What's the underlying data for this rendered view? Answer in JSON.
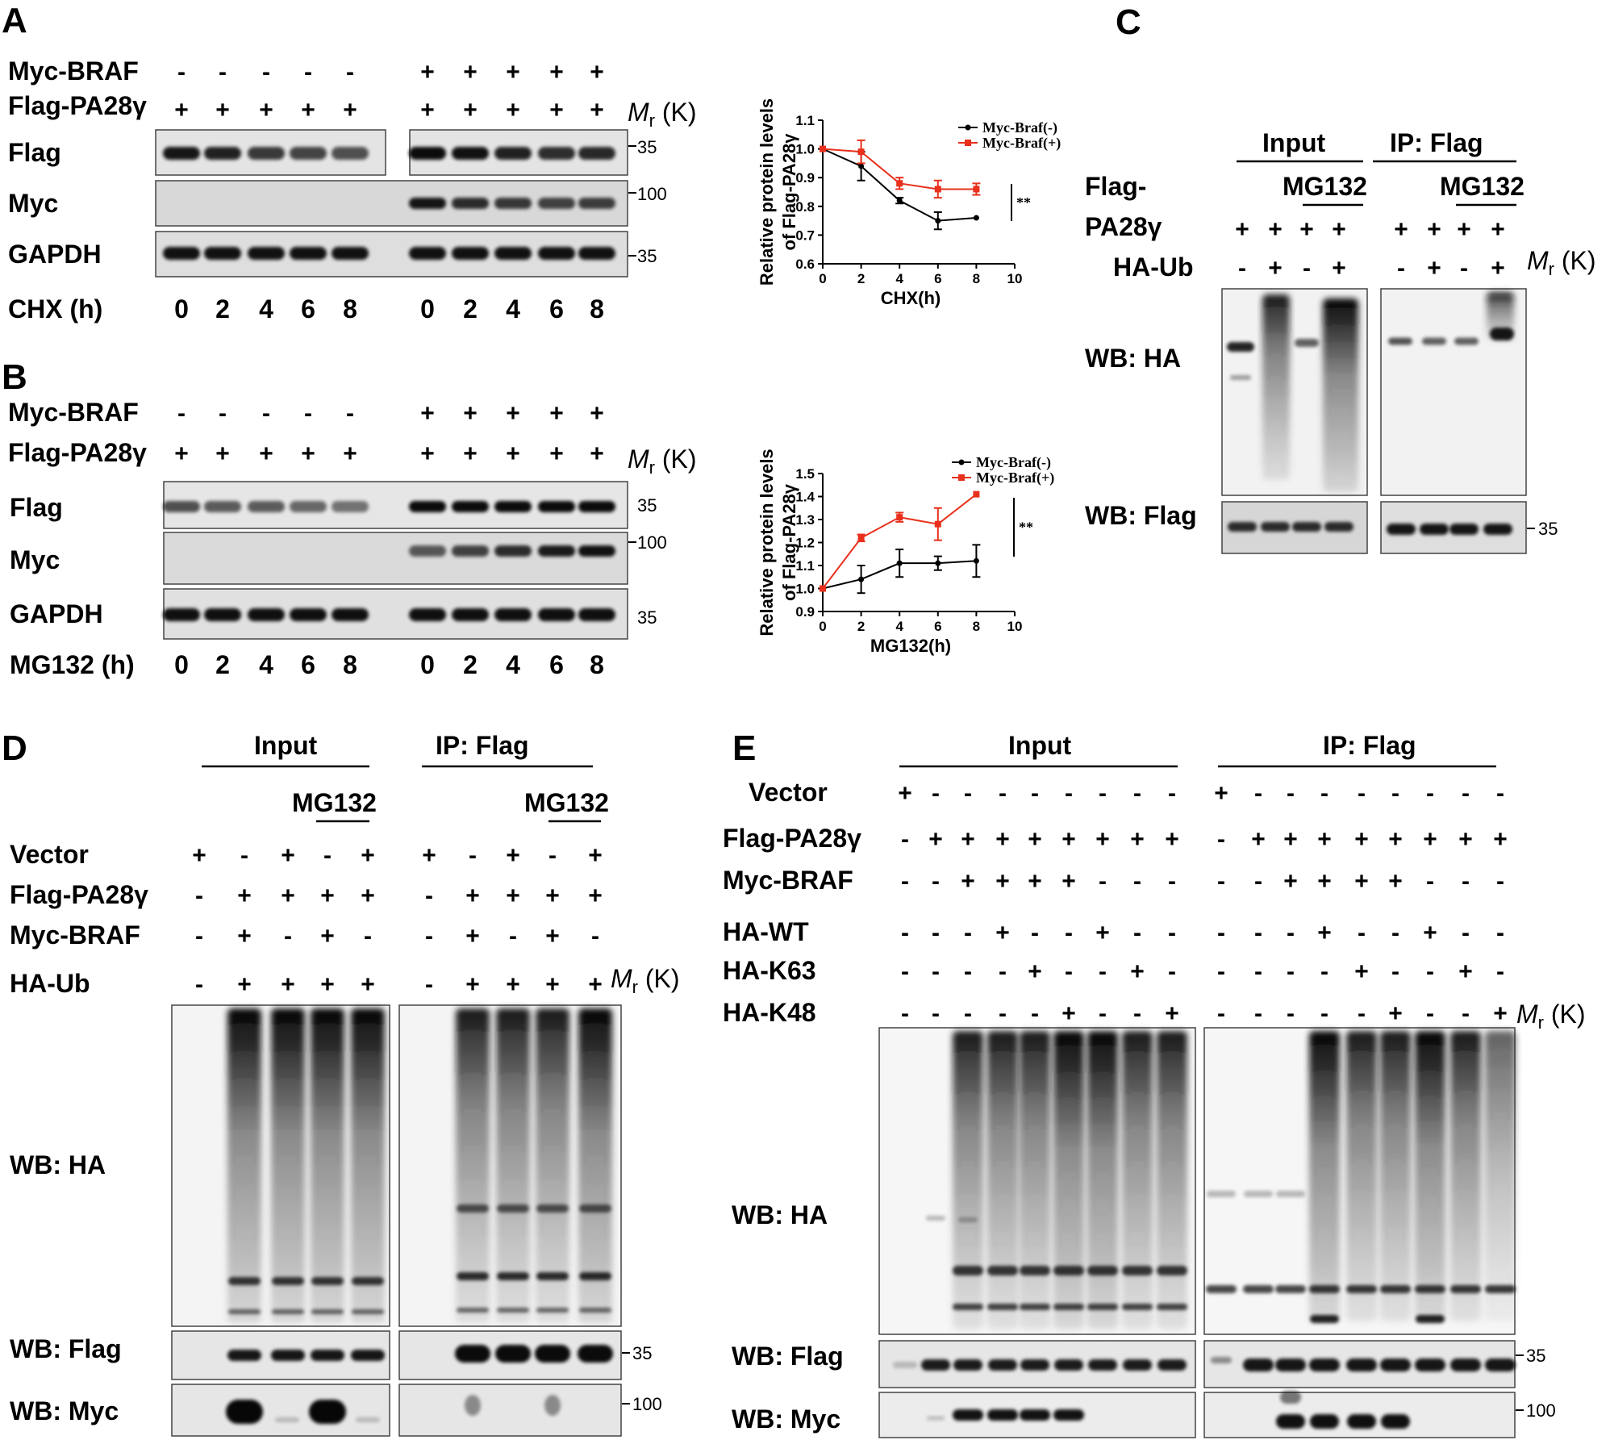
{
  "panels": {
    "A": {
      "letter": "A",
      "rows": [
        {
          "label": "Myc-BRAF",
          "signs": [
            "-",
            "-",
            "-",
            "-",
            "-",
            "+",
            "+",
            "+",
            "+",
            "+"
          ]
        },
        {
          "label": "Flag-PA28γ",
          "signs": [
            "+",
            "+",
            "+",
            "+",
            "+",
            "+",
            "+",
            "+",
            "+",
            "+"
          ]
        }
      ],
      "mr_label": "M",
      "mr_sub": "r",
      "mr_unit": " (K)",
      "blots": [
        "Flag",
        "Myc",
        "GAPDH"
      ],
      "markers": [
        "35",
        "100",
        "35"
      ],
      "time_label": "CHX (h)",
      "times": [
        "0",
        "2",
        "4",
        "6",
        "8",
        "0",
        "2",
        "4",
        "6",
        "8"
      ]
    },
    "B": {
      "letter": "B",
      "rows": [
        {
          "label": "Myc-BRAF",
          "signs": [
            "-",
            "-",
            "-",
            "-",
            "-",
            "+",
            "+",
            "+",
            "+",
            "+"
          ]
        },
        {
          "label": "Flag-PA28γ",
          "signs": [
            "+",
            "+",
            "+",
            "+",
            "+",
            "+",
            "+",
            "+",
            "+",
            "+"
          ]
        }
      ],
      "mr_label": "M",
      "mr_sub": "r",
      "mr_unit": " (K)",
      "blots": [
        "Flag",
        "Myc",
        "GAPDH"
      ],
      "markers": [
        "35",
        "100",
        "35"
      ],
      "time_label": "MG132 (h)",
      "times": [
        "0",
        "2",
        "4",
        "6",
        "8",
        "0",
        "2",
        "4",
        "6",
        "8"
      ]
    },
    "C": {
      "letter": "C",
      "groups": [
        "Input",
        "IP: Flag"
      ],
      "treatment": "MG132",
      "row1_label": "Flag-",
      "row2_label": "PA28γ",
      "row3_label": "HA-Ub",
      "pa28_signs": [
        "+",
        "+",
        "+",
        "+",
        "+",
        "+",
        "+",
        "+"
      ],
      "haub_signs": [
        "-",
        "+",
        "-",
        "+",
        "-",
        "+",
        "-",
        "+"
      ],
      "mr_label": "M",
      "mr_sub": "r",
      "mr_unit": " (K)",
      "blots": [
        "WB: HA",
        "WB: Flag"
      ],
      "marker": "35"
    },
    "D": {
      "letter": "D",
      "groups": [
        "Input",
        "IP: Flag"
      ],
      "treatment": "MG132",
      "rows": [
        {
          "label": "Vector",
          "signs": [
            "+",
            "-",
            "+",
            "-",
            "+",
            "+",
            "-",
            "+",
            "-",
            "+"
          ]
        },
        {
          "label": "Flag-PA28γ",
          "signs": [
            "-",
            "+",
            "+",
            "+",
            "+",
            "-",
            "+",
            "+",
            "+",
            "+"
          ]
        },
        {
          "label": "Myc-BRAF",
          "signs": [
            "-",
            "+",
            "-",
            "+",
            "-",
            "-",
            "+",
            "-",
            "+",
            "-"
          ]
        },
        {
          "label": "HA-Ub",
          "signs": [
            "-",
            "+",
            "+",
            "+",
            "+",
            "-",
            "+",
            "+",
            "+",
            "+"
          ]
        }
      ],
      "mr_label": "M",
      "mr_sub": "r",
      "mr_unit": " (K)",
      "blots": [
        "WB: HA",
        "WB: Flag",
        "WB: Myc"
      ],
      "markers": [
        "35",
        "100"
      ]
    },
    "E": {
      "letter": "E",
      "groups": [
        "Input",
        "IP: Flag"
      ],
      "rows": [
        {
          "label": "Vector",
          "signs": [
            "+",
            "-",
            "-",
            "-",
            "-",
            "-",
            "-",
            "-",
            "-",
            "+",
            "-",
            "-",
            "-",
            "-",
            "-",
            "-",
            "-",
            "-"
          ]
        },
        {
          "label": "Flag-PA28γ",
          "signs": [
            "-",
            "+",
            "+",
            "+",
            "+",
            "+",
            "+",
            "+",
            "+",
            "-",
            "+",
            "+",
            "+",
            "+",
            "+",
            "+",
            "+",
            "+"
          ]
        },
        {
          "label": "Myc-BRAF",
          "signs": [
            "-",
            "-",
            "+",
            "+",
            "+",
            "+",
            "-",
            "-",
            "-",
            "-",
            "-",
            "+",
            "+",
            "+",
            "+",
            "-",
            "-",
            "-"
          ]
        },
        {
          "label": "HA-WT",
          "signs": [
            "-",
            "-",
            "-",
            "+",
            "-",
            "-",
            "+",
            "-",
            "-",
            "-",
            "-",
            "-",
            "+",
            "-",
            "-",
            "+",
            "-",
            "-"
          ]
        },
        {
          "label": "HA-K63",
          "signs": [
            "-",
            "-",
            "-",
            "-",
            "+",
            "-",
            "-",
            "+",
            "-",
            "-",
            "-",
            "-",
            "-",
            "+",
            "-",
            "-",
            "+",
            "-"
          ]
        },
        {
          "label": "HA-K48",
          "signs": [
            "-",
            "-",
            "-",
            "-",
            "-",
            "+",
            "-",
            "-",
            "+",
            "-",
            "-",
            "-",
            "-",
            "-",
            "+",
            "-",
            "-",
            "+"
          ]
        }
      ],
      "mr_label": "M",
      "mr_sub": "r",
      "mr_unit": " (K)",
      "blots": [
        "WB: HA",
        "WB: Flag",
        "WB: Myc"
      ],
      "markers": [
        "35",
        "100"
      ]
    }
  },
  "chart_data": [
    {
      "type": "line",
      "xlabel": "CHX(h)",
      "ylabel": "Relative protein levels of Flag-PA28γ",
      "ylabel_lines": [
        "Relative protein levels",
        "of Flag-PA28γ"
      ],
      "xlim": [
        0,
        10
      ],
      "ylim": [
        0.6,
        1.1
      ],
      "xticks": [
        0,
        2,
        4,
        6,
        8,
        10
      ],
      "yticks": [
        0.6,
        0.7,
        0.8,
        0.9,
        1.0,
        1.1
      ],
      "significance": "**",
      "legend_position": "top-right",
      "series": [
        {
          "name": "Myc-Braf(-)",
          "color": "#000000",
          "x": [
            0,
            2,
            4,
            6,
            8
          ],
          "y": [
            1.0,
            0.94,
            0.82,
            0.75,
            0.76
          ],
          "err": [
            0,
            0.05,
            0.01,
            0.03,
            0
          ]
        },
        {
          "name": "Myc-Braf(+)",
          "color": "#e8301c",
          "x": [
            0,
            2,
            4,
            6,
            8
          ],
          "y": [
            1.0,
            0.99,
            0.88,
            0.86,
            0.86
          ],
          "err": [
            0,
            0.04,
            0.02,
            0.03,
            0.02
          ]
        }
      ]
    },
    {
      "type": "line",
      "xlabel": "MG132(h)",
      "ylabel": "Relative protein levels of Flag-PA28γ",
      "ylabel_lines": [
        "Relative protein levels",
        "of Flag-PA28γ"
      ],
      "xlim": [
        0,
        10
      ],
      "ylim": [
        0.9,
        1.5
      ],
      "xticks": [
        0,
        2,
        4,
        6,
        8,
        10
      ],
      "yticks": [
        0.9,
        1.0,
        1.1,
        1.2,
        1.3,
        1.4,
        1.5
      ],
      "significance": "**",
      "legend_position": "top-right",
      "series": [
        {
          "name": "Myc-Braf(-)",
          "color": "#000000",
          "x": [
            0,
            2,
            4,
            6,
            8
          ],
          "y": [
            1.0,
            1.04,
            1.11,
            1.11,
            1.12
          ],
          "err": [
            0,
            0.06,
            0.06,
            0.03,
            0.07
          ]
        },
        {
          "name": "Myc-Braf(+)",
          "color": "#e8301c",
          "x": [
            0,
            2,
            4,
            6,
            8
          ],
          "y": [
            1.0,
            1.22,
            1.31,
            1.28,
            1.41
          ],
          "err": [
            0,
            0.015,
            0.02,
            0.07,
            0
          ]
        }
      ]
    }
  ]
}
